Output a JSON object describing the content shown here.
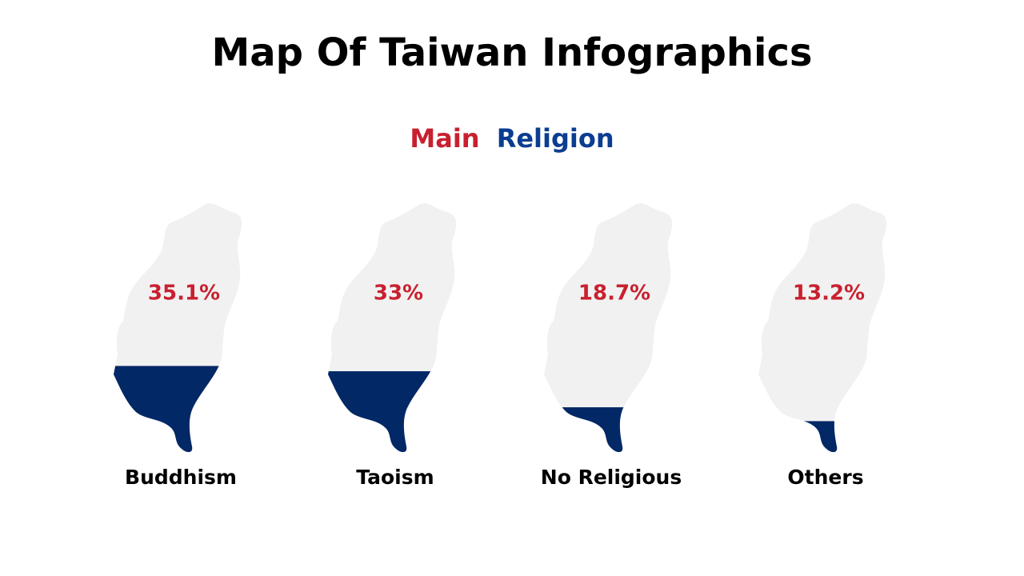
{
  "chart_data": {
    "type": "pictogram",
    "title": "Map Of Taiwan Infographics",
    "subtitle_parts": [
      {
        "text": "Main",
        "color": "#c8202f"
      },
      {
        "text": "Religion",
        "color": "#0b3d91"
      }
    ],
    "categories": [
      "Buddhism",
      "Taoism",
      "No Religious",
      "Others"
    ],
    "values": [
      35.1,
      33,
      18.7,
      13.2
    ],
    "value_labels": [
      "35.1%",
      "33%",
      "18.7%",
      "13.2%"
    ],
    "color": "#022866",
    "empty_color": "#f1f1f1",
    "label_color": "#c8202f",
    "ylim": [
      0,
      100
    ]
  }
}
